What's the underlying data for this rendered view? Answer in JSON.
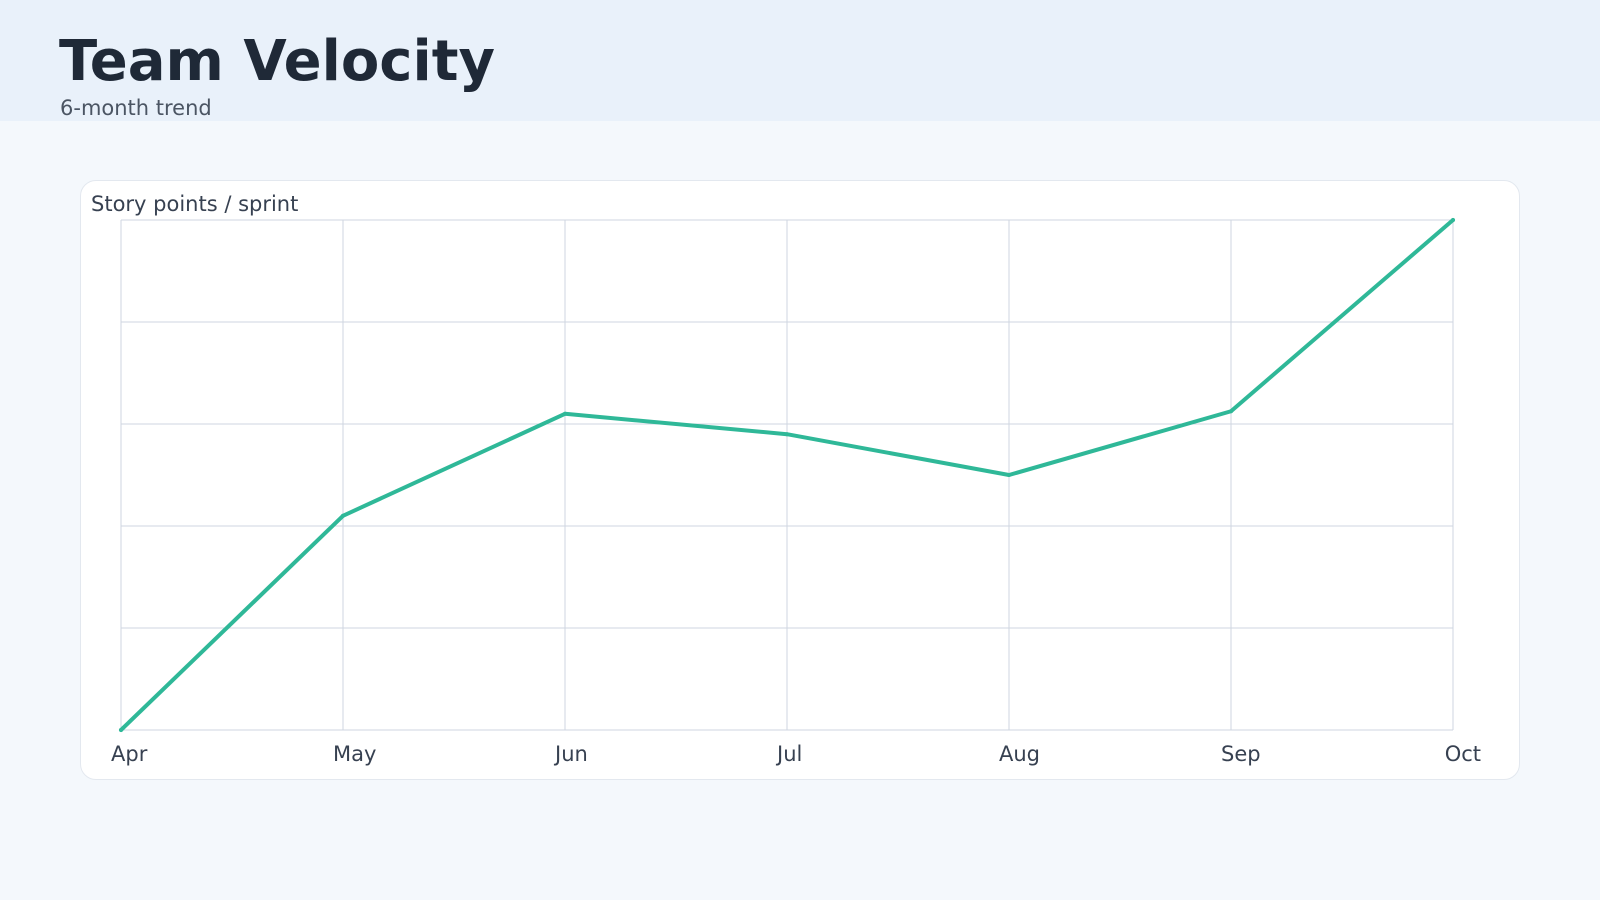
{
  "header": {
    "title": "Team Velocity",
    "subtitle": "6-month trend"
  },
  "colors": {
    "line": "#2fb898",
    "grid": "#cfd6e0",
    "background": "#f4f8fc",
    "header_background": "#e9f1fa"
  },
  "chart_data": {
    "type": "line",
    "title": "Story points / sprint",
    "xlabel": "",
    "ylabel": "",
    "grid": true,
    "categories": [
      "Apr",
      "May",
      "Jun",
      "Jul",
      "Aug",
      "Sep",
      "Oct"
    ],
    "series": [
      {
        "name": "Story points / sprint",
        "values": [
          0,
          42,
          62,
          58,
          50,
          62.5,
          100
        ]
      }
    ],
    "ylim": [
      0,
      100
    ]
  }
}
